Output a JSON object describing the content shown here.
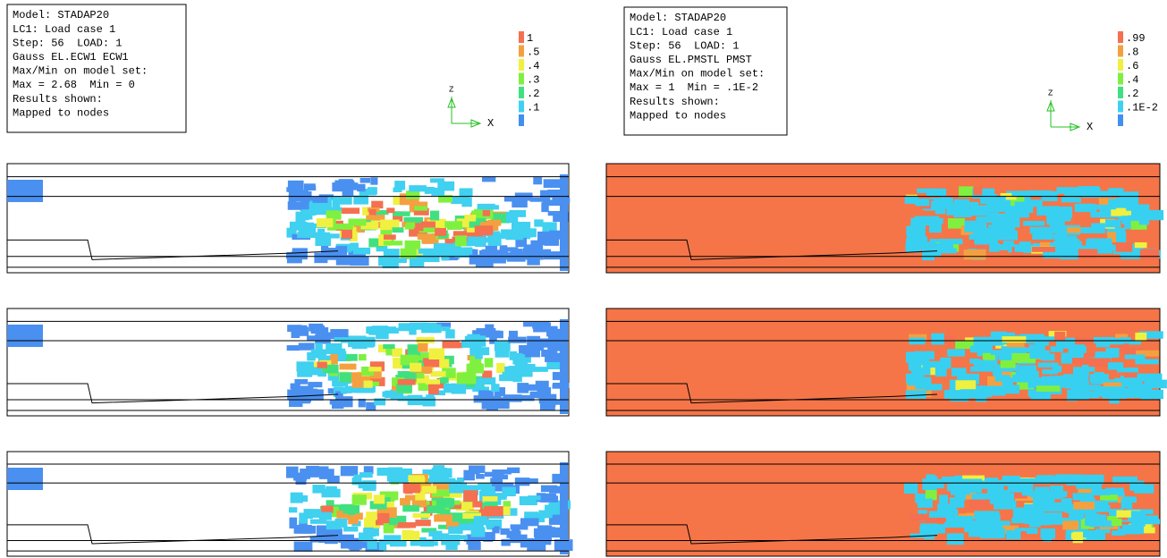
{
  "left_view": {
    "info": [
      "Model: STADAP20",
      "LC1: Load case 1",
      "Step: 56  LOAD: 1",
      "Gauss EL.ECW1 ECW1",
      "Max/Min on model set:",
      "Max = 2.68  Min = 0",
      "Results shown:",
      "Mapped to nodes"
    ],
    "legend": {
      "labels": [
        "1",
        ".5",
        ".4",
        ".3",
        ".2",
        ".1"
      ],
      "colors": [
        "#f47050",
        "#f4a040",
        "#f0f040",
        "#80f040",
        "#40e080",
        "#40d0f0",
        "#4090f0"
      ]
    },
    "triad": {
      "z": "Z",
      "x": "X"
    }
  },
  "right_view": {
    "info": [
      "Model: STADAP20",
      "LC1: Load case 1",
      "Step: 56  LOAD: 1",
      "Gauss EL.PMSTL PMST",
      "Max/Min on model set:",
      "Max = 1  Min = .1E-2",
      "Results shown:",
      "Mapped to nodes"
    ],
    "legend": {
      "labels": [
        ".99",
        ".8",
        ".6",
        ".4",
        ".2",
        ".1E-2"
      ],
      "colors": [
        "#f47050",
        "#f4a040",
        "#f0f040",
        "#80f040",
        "#40e080",
        "#40d0f0",
        "#4090f0"
      ]
    },
    "triad": {
      "z": "Z",
      "x": "X"
    }
  }
}
